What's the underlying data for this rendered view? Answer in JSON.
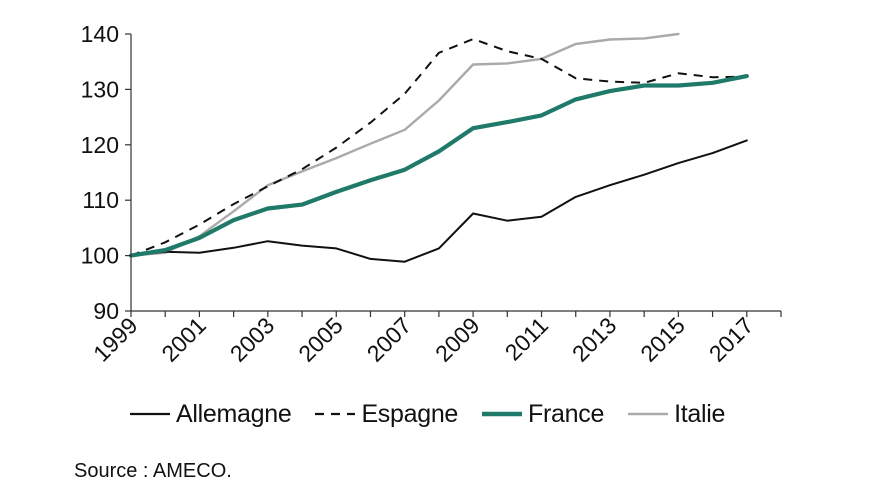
{
  "chart_data": {
    "type": "line",
    "title": "",
    "xlabel": "",
    "ylabel": "",
    "ylim": [
      90,
      140
    ],
    "yticks": [
      90,
      100,
      110,
      120,
      130,
      140
    ],
    "xlim": [
      1999,
      2018
    ],
    "xticks": [
      1999,
      2001,
      2003,
      2005,
      2007,
      2009,
      2011,
      2013,
      2015,
      2017
    ],
    "x": [
      1999,
      2000,
      2001,
      2002,
      2003,
      2004,
      2005,
      2006,
      2007,
      2008,
      2009,
      2010,
      2011,
      2012,
      2013,
      2014,
      2015,
      2016,
      2017
    ],
    "grid": false,
    "legend_position": "bottom",
    "series": [
      {
        "name": "Allemagne",
        "color": "#111111",
        "style": "solid",
        "values": [
          100,
          100.7,
          100.5,
          101.4,
          102.6,
          101.8,
          101.3,
          99.4,
          98.9,
          101.3,
          107.6,
          106.3,
          107.0,
          110.6,
          112.7,
          114.6,
          116.7,
          118.5,
          120.8
        ]
      },
      {
        "name": "Espagne",
        "color": "#111111",
        "style": "dashed",
        "values": [
          100,
          102.4,
          105.6,
          109.3,
          112.5,
          115.6,
          119.5,
          124.0,
          129.2,
          136.6,
          139.1,
          136.9,
          135.5,
          132.0,
          131.4,
          131.2,
          132.9,
          132.2,
          132.3
        ]
      },
      {
        "name": "France",
        "color": "#1f7a6a",
        "style": "thick",
        "values": [
          100,
          101.0,
          103.2,
          106.4,
          108.5,
          109.2,
          111.5,
          113.6,
          115.5,
          118.8,
          123.0,
          124.1,
          125.3,
          128.2,
          129.7,
          130.7,
          130.7,
          131.2,
          132.4
        ]
      },
      {
        "name": "Italie",
        "color": "#aaaaaa",
        "style": "solid",
        "values": [
          100,
          100.5,
          103.5,
          108.0,
          112.7,
          115.2,
          117.6,
          120.2,
          122.7,
          128.0,
          134.5,
          134.7,
          135.5,
          138.2,
          139.0,
          139.2,
          140.0,
          null,
          null
        ]
      }
    ],
    "source": "Source : AMECO."
  }
}
